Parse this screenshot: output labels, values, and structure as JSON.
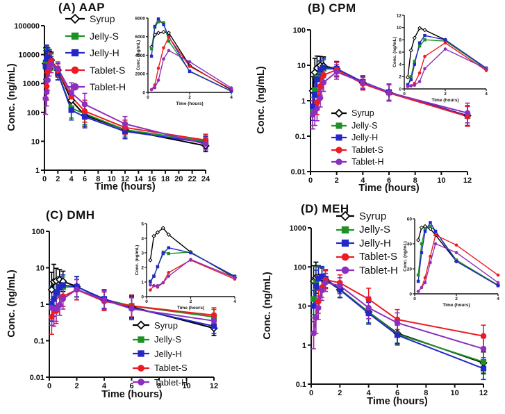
{
  "legend_series": [
    {
      "name": "Syrup",
      "color": "#000000",
      "marker": "diamond",
      "open": true
    },
    {
      "name": "Jelly-S",
      "color": "#1E9125",
      "marker": "square",
      "open": false
    },
    {
      "name": "Jelly-H",
      "color": "#2427C7",
      "marker": "square",
      "open": false
    },
    {
      "name": "Tablet-S",
      "color": "#EC1B24",
      "marker": "circle",
      "open": false
    },
    {
      "name": "Tablet-H",
      "color": "#8C2FBE",
      "marker": "circle",
      "open": false
    }
  ],
  "chart_data": [
    {
      "id": "A",
      "type": "line",
      "title": "(A) AAP",
      "xlabel": "Time (hours)",
      "ylabel": "Conc. (ng/mL)",
      "y_scale": "log",
      "ylim": [
        1,
        100000
      ],
      "y_ticks": [
        1,
        10,
        100,
        1000,
        10000,
        100000
      ],
      "xlim": [
        0,
        24
      ],
      "x_ticks": [
        0,
        2,
        4,
        6,
        8,
        10,
        12,
        14,
        16,
        18,
        20,
        22,
        24
      ],
      "times": [
        0.17,
        0.33,
        0.5,
        0.75,
        1,
        2,
        4,
        6,
        12,
        24
      ],
      "error_bar_factors": [
        3.5,
        3,
        2.2,
        2,
        1.9,
        1.7,
        2.2,
        2.4,
        1.8,
        1.6
      ],
      "series": [
        {
          "name": "Syrup",
          "values": [
            4900,
            6200,
            6400,
            6500,
            6400,
            2900,
            260,
            80,
            25,
            7
          ]
        },
        {
          "name": "Jelly-S",
          "values": [
            4700,
            7000,
            7600,
            7500,
            5500,
            2300,
            140,
            90,
            25,
            10
          ]
        },
        {
          "name": "Jelly-H",
          "values": [
            3900,
            7100,
            7900,
            7300,
            6000,
            2250,
            120,
            70,
            22,
            9
          ]
        },
        {
          "name": "Tablet-S",
          "values": [
            300,
            800,
            2600,
            4800,
            5950,
            2800,
            350,
            110,
            30,
            11
          ]
        },
        {
          "name": "Tablet-H",
          "values": [
            300,
            500,
            1300,
            3600,
            4500,
            3300,
            480,
            190,
            40,
            8
          ]
        }
      ],
      "inset": {
        "xlabel": "Time (hours)",
        "ylabel": "Conc. (ng/mL)",
        "xlim": [
          0,
          4
        ],
        "x_ticks": [
          0,
          2,
          4
        ],
        "ylim": [
          0,
          8000
        ],
        "y_ticks": [
          0,
          2000,
          4000,
          6000,
          8000
        ],
        "max_time": 4
      }
    },
    {
      "id": "B",
      "type": "line",
      "title": "(B) CPM",
      "xlabel": "Time (hours)",
      "ylabel": "Conc. (ng/mL)",
      "y_scale": "log",
      "ylim": [
        0.01,
        100
      ],
      "y_ticks": [
        0.01,
        0.1,
        1,
        10,
        100
      ],
      "xlim": [
        0,
        12
      ],
      "x_ticks": [
        0,
        2,
        4,
        6,
        8,
        10,
        12
      ],
      "times": [
        0.17,
        0.33,
        0.5,
        0.75,
        1,
        2,
        4,
        6,
        12
      ],
      "error_bar_factors": [
        2.5,
        2.5,
        2.2,
        1.8,
        1.8,
        1.6,
        1.5,
        1.7,
        1.9
      ],
      "series": [
        {
          "name": "Syrup",
          "values": [
            1.9,
            6.3,
            8.3,
            9.9,
            9.6,
            8.0,
            3.2,
            1.7,
            0.38
          ]
        },
        {
          "name": "Jelly-S",
          "values": [
            0.5,
            2.0,
            4.5,
            7.0,
            8.0,
            7.8,
            3.3,
            1.7,
            0.37
          ]
        },
        {
          "name": "Jelly-H",
          "values": [
            0.7,
            1.5,
            4.0,
            7.5,
            8.7,
            8.0,
            3.4,
            1.75,
            0.38
          ]
        },
        {
          "name": "Tablet-S",
          "values": [
            0.4,
            0.5,
            0.9,
            2.6,
            5.3,
            7.5,
            3.0,
            1.65,
            0.36
          ]
        },
        {
          "name": "Tablet-H",
          "values": [
            0.4,
            0.5,
            0.6,
            1.2,
            3.3,
            6.5,
            3.3,
            1.7,
            0.45
          ]
        }
      ],
      "inset": {
        "xlabel": "Time (hours)",
        "ylabel": "Conc. (ng/mL)",
        "xlim": [
          0,
          4
        ],
        "x_ticks": [
          0,
          2,
          4
        ],
        "ylim": [
          0,
          12
        ],
        "y_ticks": [
          0,
          2,
          4,
          6,
          8,
          10,
          12
        ],
        "max_time": 4
      }
    },
    {
      "id": "C",
      "type": "line",
      "title": "(C) DMH",
      "xlabel": "Time (hours)",
      "ylabel": "Conc. (ng/mL)",
      "y_scale": "log",
      "ylim": [
        0.01,
        100
      ],
      "y_ticks": [
        0.01,
        0.1,
        1,
        10,
        100
      ],
      "xlim": [
        0,
        12
      ],
      "x_ticks": [
        0,
        2,
        4,
        6,
        8,
        10,
        12
      ],
      "times": [
        0.17,
        0.33,
        0.5,
        0.75,
        1,
        2,
        4,
        6,
        12
      ],
      "error_bar_factors": [
        3,
        3,
        2.2,
        1.9,
        1.9,
        1.9,
        1.8,
        2.0,
        1.6
      ],
      "series": [
        {
          "name": "Syrup",
          "values": [
            2.5,
            4.15,
            4.4,
            4.7,
            4.25,
            3.05,
            1.3,
            0.85,
            0.22
          ]
        },
        {
          "name": "Jelly-S",
          "values": [
            1.0,
            1.4,
            2.05,
            3.05,
            2.95,
            3.05,
            1.35,
            0.9,
            0.45
          ]
        },
        {
          "name": "Jelly-H",
          "values": [
            1.05,
            1.4,
            2.05,
            2.95,
            3.35,
            3.0,
            1.4,
            0.8,
            0.25
          ]
        },
        {
          "name": "Tablet-S",
          "values": [
            0.45,
            0.75,
            0.65,
            0.95,
            1.65,
            2.5,
            1.2,
            0.9,
            0.5
          ]
        },
        {
          "name": "Tablet-H",
          "values": [
            0.8,
            0.75,
            0.75,
            0.95,
            1.4,
            2.55,
            1.3,
            0.75,
            0.35
          ]
        }
      ],
      "inset": {
        "xlabel": "Time (hours)",
        "ylabel": "Conc. (ng/mL)",
        "xlim": [
          0,
          4
        ],
        "x_ticks": [
          0,
          2,
          4
        ],
        "ylim": [
          0,
          5
        ],
        "y_ticks": [
          0,
          1,
          2,
          3,
          4,
          5
        ],
        "max_time": 4
      }
    },
    {
      "id": "D",
      "type": "line",
      "title": "(D) MEH",
      "xlabel": "Time (hours)",
      "ylabel": "Conc. (ng/mL)",
      "y_scale": "log",
      "ylim": [
        0.1,
        1000
      ],
      "y_ticks": [
        0.1,
        1,
        10,
        100,
        1000
      ],
      "xlim": [
        0,
        12
      ],
      "x_ticks": [
        0,
        2,
        4,
        6,
        8,
        10,
        12
      ],
      "times": [
        0.17,
        0.33,
        0.5,
        0.75,
        1,
        2,
        4,
        6,
        12
      ],
      "error_bar_factors": [
        2.5,
        2.5,
        2,
        1.8,
        1.7,
        1.6,
        1.9,
        1.8,
        1.9
      ],
      "series": [
        {
          "name": "Syrup",
          "values": [
            43,
            53,
            54,
            52,
            47,
            26,
            7,
            2.0,
            0.35
          ]
        },
        {
          "name": "Jelly-S",
          "values": [
            15,
            40,
            52,
            54,
            50,
            27,
            7,
            1.9,
            0.37
          ]
        },
        {
          "name": "Jelly-H",
          "values": [
            10,
            33,
            50,
            57,
            50,
            26,
            6.5,
            1.8,
            0.25
          ]
        },
        {
          "name": "Tablet-S",
          "values": [
            2,
            5,
            13,
            30,
            47,
            39,
            15,
            4.5,
            1.7
          ]
        },
        {
          "name": "Tablet-H",
          "values": [
            2,
            5,
            9,
            25,
            40,
            33,
            9,
            3.7,
            0.8
          ]
        }
      ],
      "inset": {
        "xlabel": "Time (hours)",
        "ylabel": "Conc. (ng/mL)",
        "xlim": [
          0,
          4
        ],
        "x_ticks": [
          0,
          2,
          4
        ],
        "ylim": [
          0,
          60
        ],
        "y_ticks": [
          0,
          20,
          40,
          60
        ],
        "max_time": 4
      }
    }
  ]
}
